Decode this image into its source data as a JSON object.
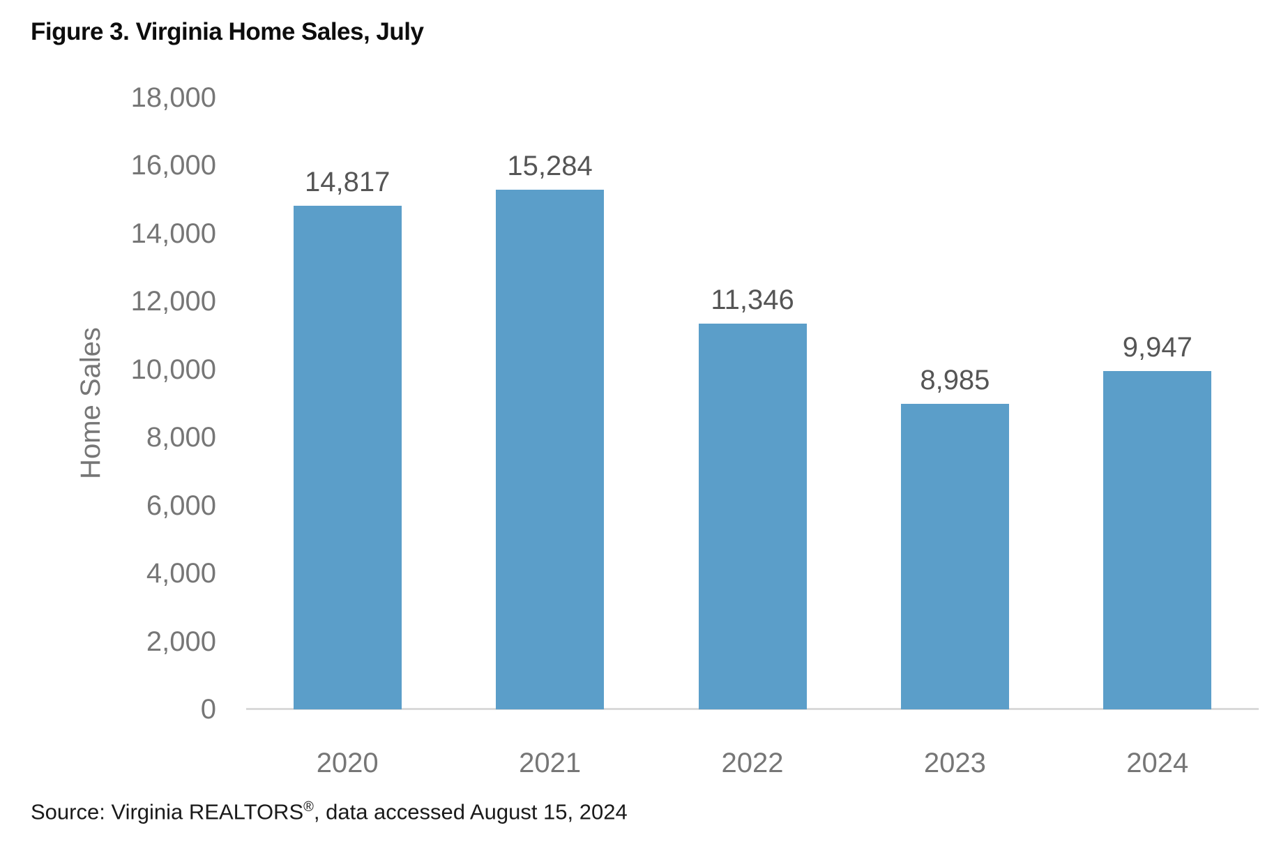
{
  "figure": {
    "source": {
      "prefix": "Source: Virginia REALTORS",
      "registered_mark": "®",
      "suffix": ", data accessed August 15, 2024"
    }
  },
  "chart_data": {
    "type": "bar",
    "title": "Figure 3. Virginia Home Sales, July",
    "categories": [
      "2020",
      "2021",
      "2022",
      "2023",
      "2024"
    ],
    "values": [
      14817,
      15284,
      11346,
      8985,
      9947
    ],
    "data_labels": [
      "14,817",
      "15,284",
      "11,346",
      "8,985",
      "9,947"
    ],
    "xlabel": "",
    "ylabel": "Home Sales",
    "ylim": [
      0,
      18000
    ],
    "ytick_step": 2000,
    "ytick_labels": [
      "0",
      "2,000",
      "4,000",
      "6,000",
      "8,000",
      "10,000",
      "12,000",
      "14,000",
      "16,000",
      "18,000"
    ],
    "grid": false,
    "legend": false,
    "bar_color": "#5B9EC9",
    "axis_line_color": "#D9D9D9",
    "tick_label_color": "#767676",
    "data_label_color": "#555555",
    "title_color": "#0D0D0D"
  }
}
